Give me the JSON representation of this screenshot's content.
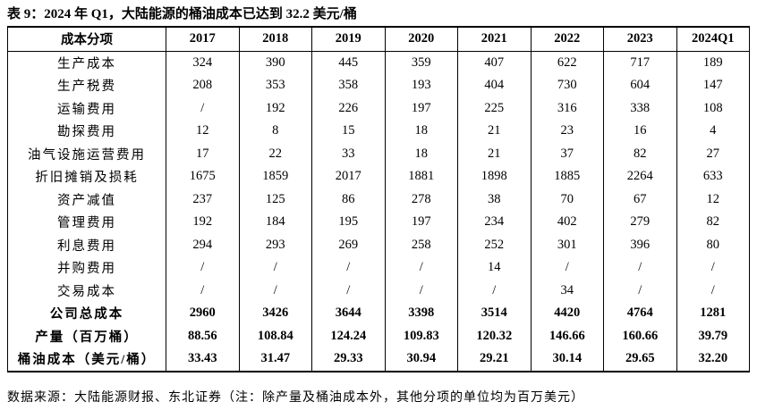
{
  "header": {
    "title": "表 9：2024 年 Q1，大陆能源的桶油成本已达到 32.2 美元/桶"
  },
  "table": {
    "columns": [
      "成本分项",
      "2017",
      "2018",
      "2019",
      "2020",
      "2021",
      "2022",
      "2023",
      "2024Q1"
    ],
    "rows": [
      [
        "生产成本",
        "324",
        "390",
        "445",
        "359",
        "407",
        "622",
        "717",
        "189"
      ],
      [
        "生产税费",
        "208",
        "353",
        "358",
        "193",
        "404",
        "730",
        "604",
        "147"
      ],
      [
        "运输费用",
        "/",
        "192",
        "226",
        "197",
        "225",
        "316",
        "338",
        "108"
      ],
      [
        "勘探费用",
        "12",
        "8",
        "15",
        "18",
        "21",
        "23",
        "16",
        "4"
      ],
      [
        "油气设施运营费用",
        "17",
        "22",
        "33",
        "18",
        "21",
        "37",
        "82",
        "27"
      ],
      [
        "折旧摊销及损耗",
        "1675",
        "1859",
        "2017",
        "1881",
        "1898",
        "1885",
        "2264",
        "633"
      ],
      [
        "资产减值",
        "237",
        "125",
        "86",
        "278",
        "38",
        "70",
        "67",
        "12"
      ],
      [
        "管理费用",
        "192",
        "184",
        "195",
        "197",
        "234",
        "402",
        "279",
        "82"
      ],
      [
        "利息费用",
        "294",
        "293",
        "269",
        "258",
        "252",
        "301",
        "396",
        "80"
      ],
      [
        "并购费用",
        "/",
        "/",
        "/",
        "/",
        "14",
        "/",
        "/",
        "/"
      ],
      [
        "交易成本",
        "/",
        "/",
        "/",
        "/",
        "/",
        "34",
        "/",
        "/"
      ],
      [
        "公司总成本",
        "2960",
        "3426",
        "3644",
        "3398",
        "3514",
        "4420",
        "4764",
        "1281"
      ],
      [
        "产量（百万桶）",
        "88.56",
        "108.84",
        "124.24",
        "109.83",
        "120.32",
        "146.66",
        "160.66",
        "39.79"
      ],
      [
        "桶油成本（美元/桶）",
        "33.43",
        "31.47",
        "29.33",
        "30.94",
        "29.21",
        "30.14",
        "29.65",
        "32.20"
      ]
    ],
    "bold_rows": [
      11,
      12,
      13
    ]
  },
  "footer": {
    "source": "数据来源：大陆能源财报、东北证券（注：除产量及桶油成本外，其他分项的单位均为百万美元）"
  }
}
